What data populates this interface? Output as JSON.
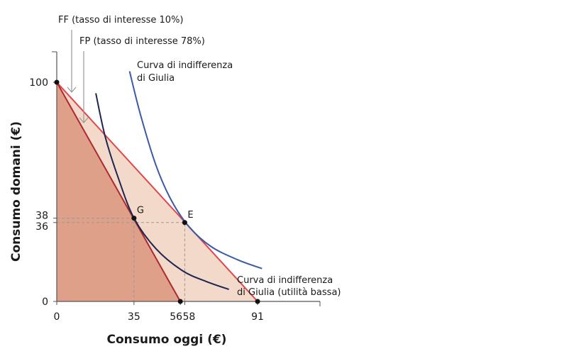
{
  "chart_data": {
    "type": "line",
    "xlabel": "Consumo oggi (€)",
    "ylabel": "Consumo domani (€)",
    "xlim": [
      0,
      119
    ],
    "ylim": [
      0,
      114
    ],
    "x_ticks": [
      0,
      35,
      56,
      58,
      91
    ],
    "y_ticks": [
      0,
      36,
      38,
      100
    ],
    "grid": false,
    "budget_lines": [
      {
        "label": "FF (tasso di interesse 10%)",
        "from": [
          0,
          100
        ],
        "to": [
          91,
          0
        ],
        "color": "#e0474c"
      },
      {
        "label": "FP (tasso di interesse 78%)",
        "from": [
          0,
          100
        ],
        "to": [
          56,
          0
        ],
        "color": "#b0282e"
      }
    ],
    "regions": {
      "fp_fill": "#dea088",
      "ff_fill": "#f3d9c9"
    },
    "indifference_curves": [
      {
        "label_lines": [
          "Curva di indifferenza",
          "di Giulia"
        ],
        "color": "#3a5aa8",
        "points": [
          [
            33,
            105
          ],
          [
            38,
            85
          ],
          [
            45,
            62
          ],
          [
            52,
            46
          ],
          [
            60,
            34
          ],
          [
            70,
            25
          ],
          [
            82,
            19
          ],
          [
            93,
            15
          ]
        ]
      },
      {
        "label_lines": [
          "Curva di indifferenza",
          "di Giulia (utilità bassa)"
        ],
        "color": "#1d2550",
        "points": [
          [
            17.7,
            95
          ],
          [
            22,
            75
          ],
          [
            28,
            56
          ],
          [
            35,
            38
          ],
          [
            45,
            24
          ],
          [
            57,
            14
          ],
          [
            68,
            9
          ],
          [
            78,
            5.5
          ]
        ]
      }
    ],
    "points": [
      {
        "label": "",
        "x": 0,
        "y": 100
      },
      {
        "label": "G",
        "x": 35,
        "y": 38
      },
      {
        "label": "E",
        "x": 58,
        "y": 36
      },
      {
        "label": "",
        "x": 56,
        "y": 0
      },
      {
        "label": "",
        "x": 91,
        "y": 0
      }
    ],
    "guide_lines": [
      {
        "x": 35,
        "y": 38
      },
      {
        "x": 58,
        "y": 36
      }
    ]
  }
}
